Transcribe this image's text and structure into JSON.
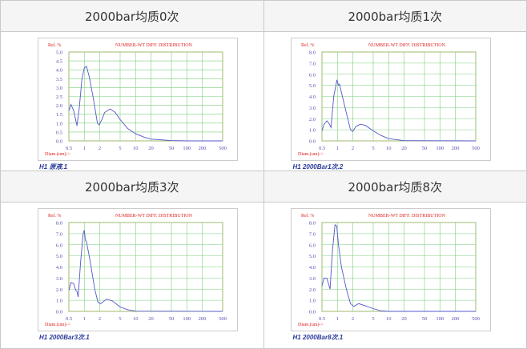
{
  "cells": [
    {
      "heading": "2000bar均质0次",
      "caption": "H1 原液.1"
    },
    {
      "heading": "2000bar均质1次",
      "caption": "H1 2000Bar1次.2"
    },
    {
      "heading": "2000bar均质3次",
      "caption": "H1 2000Bar3次.1"
    },
    {
      "heading": "2000bar均质8次",
      "caption": "H1 2000Bar8次.1"
    }
  ],
  "colors": {
    "curve": "#5555cc",
    "grid": "#7ccf7c",
    "frame": "#c8a060",
    "title": "#e02020",
    "ticks": "#5050b0"
  },
  "chart_data": [
    {
      "type": "line",
      "title": "NUMBER-WT DIFF. DISTRIBUTION",
      "xlabel": "Diam.(um)->",
      "ylabel": "Rel. %",
      "xscale": "log",
      "xlim": [
        0.5,
        500
      ],
      "ylim": [
        0,
        5
      ],
      "xticks": [
        "0.5",
        "1",
        "2",
        "5",
        "10",
        "20",
        "50",
        "100",
        "200",
        "500"
      ],
      "yticks": [
        "0.0",
        "0.5",
        "1.0",
        "1.5",
        "2.0",
        "2.5",
        "3.0",
        "3.5",
        "4.0",
        "4.5",
        "5.0"
      ],
      "grid": true,
      "x": [
        0.5,
        0.55,
        0.62,
        0.72,
        0.8,
        0.9,
        1.0,
        1.1,
        1.25,
        1.5,
        1.8,
        1.95,
        2.2,
        2.5,
        3.2,
        4,
        5,
        7,
        10,
        15,
        20,
        50,
        100,
        500
      ],
      "y": [
        1.7,
        2.05,
        1.7,
        0.85,
        1.9,
        3.5,
        4.1,
        4.2,
        3.6,
        2.4,
        1.0,
        0.9,
        1.2,
        1.6,
        1.8,
        1.6,
        1.2,
        0.7,
        0.4,
        0.2,
        0.1,
        0.02,
        0,
        0
      ]
    },
    {
      "type": "line",
      "title": "NUMBER-WT DIFF. DISTRIBUTION",
      "xlabel": "Diam.(um)->",
      "ylabel": "Rel. %",
      "xscale": "log",
      "xlim": [
        0.5,
        500
      ],
      "ylim": [
        0,
        8
      ],
      "xticks": [
        "0.5",
        "1",
        "2",
        "5",
        "10",
        "20",
        "50",
        "100",
        "200",
        "500"
      ],
      "yticks": [
        "0.0",
        "1.0",
        "2.0",
        "3.0",
        "4.0",
        "5.0",
        "6.0",
        "7.0",
        "8.0"
      ],
      "grid": true,
      "x": [
        0.5,
        0.55,
        0.63,
        0.7,
        0.75,
        0.85,
        0.98,
        1.05,
        1.1,
        1.25,
        1.5,
        1.8,
        2,
        2.3,
        2.8,
        3.5,
        5,
        7,
        10,
        20,
        500
      ],
      "y": [
        0.9,
        1.5,
        1.8,
        1.5,
        1.2,
        4.0,
        5.5,
        5.0,
        5.1,
        4.0,
        2.5,
        1.0,
        0.85,
        1.3,
        1.5,
        1.4,
        0.9,
        0.5,
        0.2,
        0.02,
        0
      ]
    },
    {
      "type": "line",
      "title": "NUMBER-WT DIFF. DISTRIBUTION",
      "xlabel": "Diam.(um)->",
      "ylabel": "Rel. %",
      "xscale": "log",
      "xlim": [
        0.5,
        500
      ],
      "ylim": [
        0,
        8
      ],
      "xticks": [
        "0.5",
        "1",
        "2",
        "5",
        "10",
        "20",
        "50",
        "100",
        "200",
        "500"
      ],
      "yticks": [
        "0.0",
        "1.0",
        "2.0",
        "3.0",
        "4.0",
        "5.0",
        "6.0",
        "7.0",
        "8.0"
      ],
      "grid": true,
      "x": [
        0.5,
        0.55,
        0.62,
        0.68,
        0.72,
        0.76,
        0.85,
        0.95,
        1.0,
        1.05,
        1.1,
        1.3,
        1.6,
        1.85,
        2.1,
        2.7,
        3.5,
        5,
        7,
        10,
        500
      ],
      "y": [
        1.9,
        2.6,
        2.5,
        1.9,
        1.8,
        1.3,
        4.5,
        7.0,
        7.3,
        6.4,
        6.3,
        4.5,
        2.0,
        0.8,
        0.7,
        1.1,
        0.95,
        0.4,
        0.15,
        0.02,
        0
      ]
    },
    {
      "type": "line",
      "title": "NUMBER-WT DIFF. DISTRIBUTION",
      "xlabel": "Diam.(um)->",
      "ylabel": "Rel. %",
      "xscale": "log",
      "xlim": [
        0.5,
        500
      ],
      "ylim": [
        0,
        8
      ],
      "xticks": [
        "0.5",
        "1",
        "2",
        "5",
        "10",
        "20",
        "50",
        "100",
        "200",
        "500"
      ],
      "yticks": [
        "0.0",
        "1.0",
        "2.0",
        "3.0",
        "4.0",
        "5.0",
        "6.0",
        "7.0",
        "8.0"
      ],
      "grid": true,
      "x": [
        0.5,
        0.55,
        0.62,
        0.68,
        0.72,
        0.8,
        0.9,
        0.97,
        1.05,
        1.2,
        1.5,
        1.8,
        2.1,
        2.6,
        3.5,
        5,
        7,
        10,
        500
      ],
      "y": [
        2.3,
        3.0,
        3.0,
        2.4,
        2.0,
        5.5,
        7.8,
        7.7,
        6.0,
        4.0,
        2.0,
        0.7,
        0.45,
        0.7,
        0.5,
        0.25,
        0.05,
        0,
        0
      ]
    }
  ]
}
